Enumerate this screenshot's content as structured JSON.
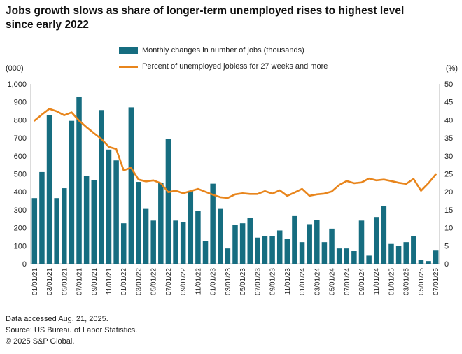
{
  "title": "Jobs growth slows as share of longer-term unemployed rises to highest level since early 2022",
  "legend": {
    "bars_label": "Monthly changes in number of jobs (thousands)",
    "line_label": "Percent of unemployed jobless for 27 weeks and more"
  },
  "axes": {
    "left_unit": "(000)",
    "right_unit": "(%)",
    "left_ticks": [
      "1,000",
      "900",
      "800",
      "700",
      "600",
      "500",
      "400",
      "300",
      "200",
      "100",
      "0"
    ],
    "right_ticks": [
      "50",
      "45",
      "40",
      "35",
      "30",
      "25",
      "20",
      "15",
      "10",
      "5",
      "0"
    ]
  },
  "colors": {
    "bar": "#166d80",
    "line": "#e8851c",
    "axis": "#c8c8c8",
    "tick_text": "#222222"
  },
  "footer": {
    "line1": "Data accessed Aug. 21, 2025.",
    "line2": "Source: US Bureau of Labor Statistics.",
    "line3": "© 2025 S&P Global."
  },
  "chart_data": {
    "type": "combo-bar-line",
    "x": [
      "01/01/21",
      "02/01/21",
      "03/01/21",
      "04/01/21",
      "05/01/21",
      "06/01/21",
      "07/01/21",
      "08/01/21",
      "09/01/21",
      "10/01/21",
      "11/01/21",
      "12/01/21",
      "01/01/22",
      "02/01/22",
      "03/01/22",
      "04/01/22",
      "05/01/22",
      "06/01/22",
      "07/01/22",
      "08/01/22",
      "09/01/22",
      "10/01/22",
      "11/01/22",
      "12/01/22",
      "01/01/23",
      "02/01/23",
      "03/01/23",
      "04/01/23",
      "05/01/23",
      "06/01/23",
      "07/01/23",
      "08/01/23",
      "09/01/23",
      "10/01/23",
      "11/01/23",
      "12/01/23",
      "01/01/24",
      "02/01/24",
      "03/01/24",
      "04/01/24",
      "05/01/24",
      "06/01/24",
      "07/01/24",
      "08/01/24",
      "09/01/24",
      "10/01/24",
      "11/01/24",
      "12/01/24",
      "01/01/25",
      "02/01/25",
      "03/01/25",
      "04/01/25",
      "05/01/25",
      "06/01/25",
      "07/01/25"
    ],
    "x_label_every": 2,
    "series": [
      {
        "name": "Monthly changes in number of jobs (thousands)",
        "type": "bar",
        "axis": "left",
        "values": [
          365,
          510,
          825,
          365,
          420,
          795,
          930,
          490,
          465,
          855,
          635,
          575,
          225,
          870,
          455,
          305,
          240,
          450,
          695,
          240,
          230,
          405,
          295,
          125,
          445,
          305,
          85,
          215,
          225,
          255,
          145,
          155,
          155,
          185,
          140,
          265,
          120,
          220,
          245,
          120,
          195,
          85,
          85,
          70,
          240,
          45,
          260,
          320,
          110,
          100,
          120,
          155,
          20,
          15,
          73
        ]
      },
      {
        "name": "Percent of unemployed jobless for 27 weeks and more",
        "type": "line",
        "axis": "right",
        "values": [
          39.8,
          41.5,
          43.1,
          42.4,
          41.3,
          42.1,
          39.8,
          38.0,
          36.3,
          34.7,
          32.5,
          31.9,
          26.0,
          26.7,
          23.4,
          22.9,
          23.2,
          22.4,
          19.9,
          20.3,
          19.6,
          20.2,
          20.8,
          20.0,
          19.2,
          18.5,
          18.3,
          19.3,
          19.6,
          19.4,
          19.4,
          20.2,
          19.5,
          20.4,
          18.9,
          19.8,
          20.8,
          18.9,
          19.3,
          19.5,
          20.1,
          21.9,
          23.0,
          22.4,
          22.6,
          23.7,
          23.2,
          23.4,
          23.0,
          22.5,
          22.2,
          23.6,
          20.3,
          22.4,
          24.9
        ]
      }
    ],
    "left_ylim": [
      0,
      1000
    ],
    "right_ylim": [
      0,
      50
    ],
    "grid": false,
    "legend_position": "top-center"
  }
}
